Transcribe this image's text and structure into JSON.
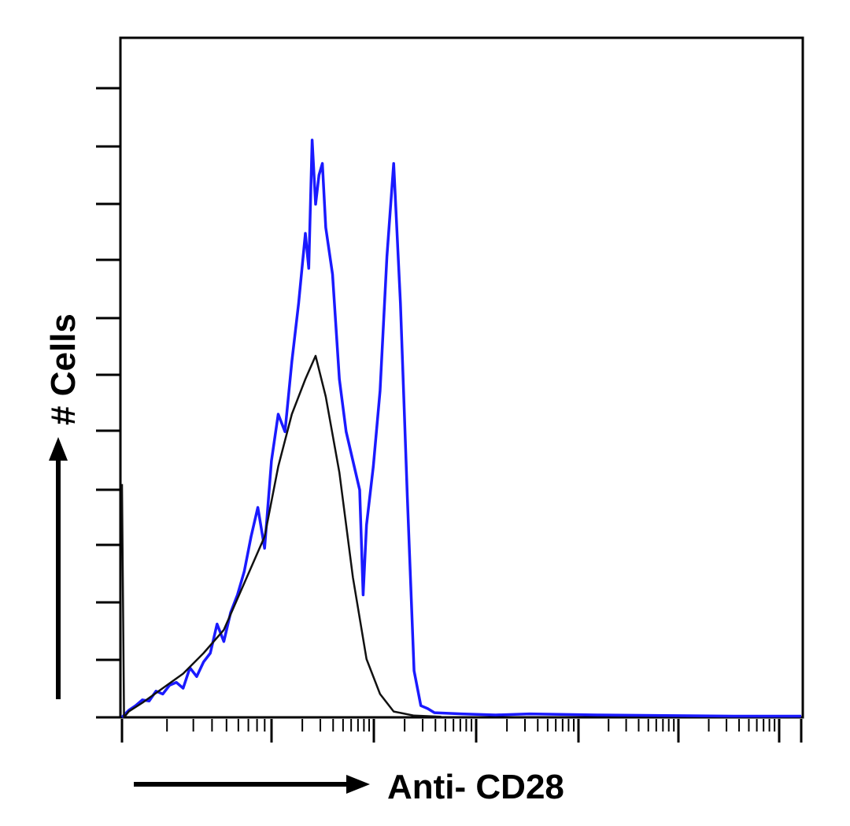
{
  "chart_data": {
    "type": "line",
    "title": "",
    "xlabel": "Anti- CD28",
    "ylabel": "# Cells",
    "xscale": "log",
    "xticks_labels": "none",
    "yticks_labels": "none",
    "grid": false,
    "legend": "none",
    "colors": {
      "blue_series": "#1a1aff",
      "black_series": "#111111",
      "axis": "#000000"
    },
    "series": [
      {
        "color": "#1a1aff",
        "points": [
          [
            0.0,
            0.0
          ],
          [
            0.01,
            0.012
          ],
          [
            0.02,
            0.02
          ],
          [
            0.03,
            0.03
          ],
          [
            0.04,
            0.028
          ],
          [
            0.05,
            0.045
          ],
          [
            0.06,
            0.04
          ],
          [
            0.07,
            0.055
          ],
          [
            0.08,
            0.06
          ],
          [
            0.09,
            0.05
          ],
          [
            0.1,
            0.085
          ],
          [
            0.11,
            0.07
          ],
          [
            0.12,
            0.095
          ],
          [
            0.13,
            0.11
          ],
          [
            0.14,
            0.16
          ],
          [
            0.15,
            0.13
          ],
          [
            0.16,
            0.18
          ],
          [
            0.17,
            0.21
          ],
          [
            0.18,
            0.25
          ],
          [
            0.19,
            0.31
          ],
          [
            0.2,
            0.36
          ],
          [
            0.21,
            0.29
          ],
          [
            0.22,
            0.44
          ],
          [
            0.23,
            0.52
          ],
          [
            0.24,
            0.49
          ],
          [
            0.25,
            0.61
          ],
          [
            0.26,
            0.71
          ],
          [
            0.27,
            0.83
          ],
          [
            0.275,
            0.77
          ],
          [
            0.28,
            0.99
          ],
          [
            0.285,
            0.88
          ],
          [
            0.29,
            0.93
          ],
          [
            0.295,
            0.95
          ],
          [
            0.3,
            0.84
          ],
          [
            0.31,
            0.76
          ],
          [
            0.32,
            0.58
          ],
          [
            0.33,
            0.49
          ],
          [
            0.34,
            0.44
          ],
          [
            0.35,
            0.39
          ],
          [
            0.355,
            0.21
          ],
          [
            0.36,
            0.33
          ],
          [
            0.37,
            0.43
          ],
          [
            0.38,
            0.56
          ],
          [
            0.39,
            0.79
          ],
          [
            0.4,
            0.95
          ],
          [
            0.41,
            0.71
          ],
          [
            0.42,
            0.38
          ],
          [
            0.43,
            0.08
          ],
          [
            0.44,
            0.02
          ],
          [
            0.45,
            0.015
          ],
          [
            0.46,
            0.008
          ],
          [
            0.5,
            0.006
          ],
          [
            0.55,
            0.004
          ],
          [
            0.6,
            0.006
          ],
          [
            0.7,
            0.004
          ],
          [
            0.8,
            0.003
          ],
          [
            0.9,
            0.002
          ],
          [
            1.0,
            0.002
          ]
        ]
      },
      {
        "color": "#111111",
        "points": [
          [
            0.0,
            0.4
          ],
          [
            0.003,
            0.0
          ],
          [
            0.01,
            0.01
          ],
          [
            0.03,
            0.025
          ],
          [
            0.06,
            0.05
          ],
          [
            0.09,
            0.075
          ],
          [
            0.12,
            0.11
          ],
          [
            0.15,
            0.15
          ],
          [
            0.18,
            0.23
          ],
          [
            0.21,
            0.31
          ],
          [
            0.23,
            0.43
          ],
          [
            0.25,
            0.52
          ],
          [
            0.27,
            0.58
          ],
          [
            0.285,
            0.62
          ],
          [
            0.3,
            0.55
          ],
          [
            0.32,
            0.42
          ],
          [
            0.34,
            0.24
          ],
          [
            0.36,
            0.1
          ],
          [
            0.38,
            0.04
          ],
          [
            0.4,
            0.01
          ],
          [
            0.43,
            0.003
          ],
          [
            0.47,
            0.001
          ]
        ]
      }
    ]
  }
}
